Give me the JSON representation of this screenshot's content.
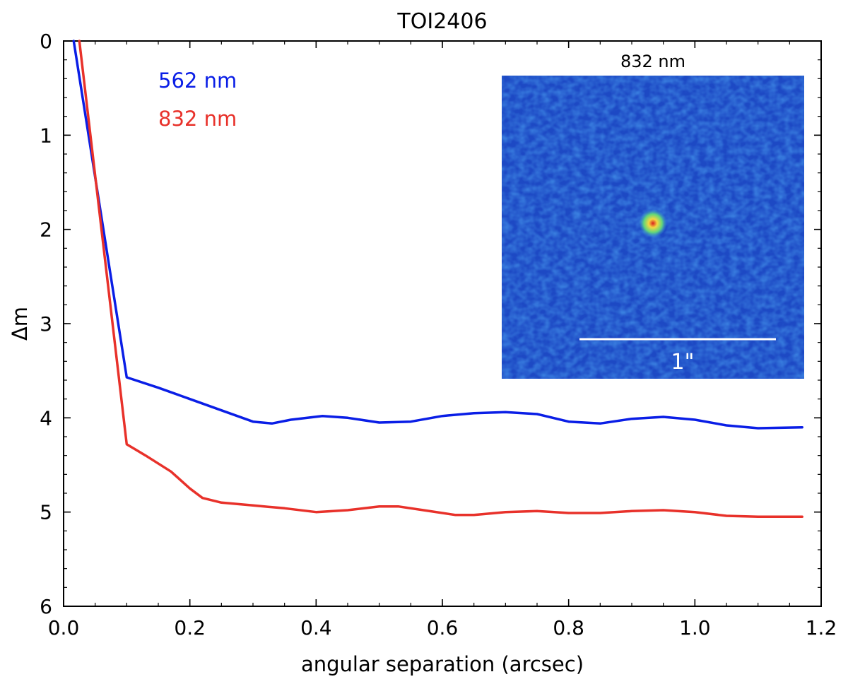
{
  "chart_data": {
    "type": "line",
    "title": "TOI2406",
    "xlabel": "angular separation (arcsec)",
    "ylabel": "Δm",
    "xlim": [
      0.0,
      1.2
    ],
    "ylim": [
      6,
      0
    ],
    "y_inverted": true,
    "x_ticks": [
      0.0,
      0.2,
      0.4,
      0.6,
      0.8,
      1.0,
      1.2
    ],
    "x_tick_labels": [
      "0.0",
      "0.2",
      "0.4",
      "0.6",
      "0.8",
      "1.0",
      "1.2"
    ],
    "y_ticks": [
      0,
      1,
      2,
      3,
      4,
      5,
      6
    ],
    "y_tick_labels": [
      "0",
      "1",
      "2",
      "3",
      "4",
      "5",
      "6"
    ],
    "grid": false,
    "legend_placement": "top-left",
    "series": [
      {
        "name": "562 nm",
        "color": "#0a1ee6",
        "x": [
          0.016,
          0.1,
          0.15,
          0.2,
          0.25,
          0.3,
          0.33,
          0.36,
          0.41,
          0.45,
          0.5,
          0.55,
          0.6,
          0.65,
          0.7,
          0.75,
          0.8,
          0.85,
          0.9,
          0.95,
          1.0,
          1.05,
          1.1,
          1.17
        ],
        "values": [
          0.0,
          3.57,
          3.68,
          3.8,
          3.92,
          4.04,
          4.06,
          4.02,
          3.98,
          4.0,
          4.05,
          4.04,
          3.98,
          3.95,
          3.94,
          3.96,
          4.04,
          4.06,
          4.01,
          3.99,
          4.02,
          4.08,
          4.11,
          4.1
        ]
      },
      {
        "name": "832 nm",
        "color": "#e8312a",
        "x": [
          0.025,
          0.1,
          0.13,
          0.17,
          0.2,
          0.22,
          0.25,
          0.3,
          0.35,
          0.4,
          0.45,
          0.5,
          0.53,
          0.57,
          0.62,
          0.65,
          0.7,
          0.75,
          0.8,
          0.85,
          0.9,
          0.95,
          1.0,
          1.05,
          1.1,
          1.17
        ],
        "values": [
          0.0,
          4.28,
          4.4,
          4.57,
          4.75,
          4.85,
          4.9,
          4.93,
          4.96,
          5.0,
          4.98,
          4.94,
          4.94,
          4.98,
          5.03,
          5.03,
          5.0,
          4.99,
          5.01,
          5.01,
          4.99,
          4.98,
          5.0,
          5.04,
          5.05,
          5.05
        ]
      }
    ],
    "inset": {
      "title": "832 nm",
      "scale_bar_label": "1\"",
      "background_color": "#1d49c4",
      "source_colors": [
        "#5dd67a",
        "#f0e045",
        "#e83028"
      ]
    }
  }
}
